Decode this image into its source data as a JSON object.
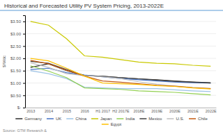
{
  "chart_data": {
    "type": "line",
    "title": "Historical and Forecasted Utility PV System Pricing, 2013-2022E",
    "ylabel": "$/Wdc",
    "source": "Source: GTM Research &",
    "categories": [
      "2013",
      "2014",
      "2015",
      "2016",
      "H1 2017",
      "H2 2017E",
      "2018E",
      "2019E",
      "2020E",
      "2021E",
      "2022E"
    ],
    "series": [
      {
        "name": "Germany",
        "color": "#2d2d2d",
        "values": [
          1.63,
          1.78,
          1.5,
          1.3,
          1.27,
          1.22,
          1.17,
          1.13,
          1.08,
          1.04,
          1.01
        ]
      },
      {
        "name": "UK",
        "color": "#4472c4",
        "values": [
          1.55,
          1.6,
          1.42,
          1.32,
          1.25,
          1.18,
          1.13,
          1.08,
          1.04,
          1.01,
          1.0
        ]
      },
      {
        "name": "China",
        "color": "#9dc3e6",
        "values": [
          1.5,
          1.38,
          1.18,
          0.83,
          0.8,
          0.77,
          0.77,
          0.77,
          0.72,
          0.68,
          0.65
        ]
      },
      {
        "name": "Japan",
        "color": "#c9c900",
        "values": [
          3.5,
          3.35,
          2.8,
          2.1,
          2.05,
          1.95,
          1.85,
          1.8,
          1.78,
          1.72,
          1.68
        ]
      },
      {
        "name": "India",
        "color": "#92d050",
        "values": [
          1.7,
          1.48,
          1.22,
          0.8,
          0.77,
          0.74,
          0.68,
          0.65,
          0.62,
          0.57,
          0.52
        ]
      },
      {
        "name": "Mexico",
        "color": "#404040",
        "values": [
          1.88,
          1.8,
          1.55,
          1.3,
          1.27,
          1.22,
          1.17,
          1.12,
          1.07,
          1.03,
          1.0
        ]
      },
      {
        "name": "U.S.",
        "color": "#bfbfbf",
        "values": [
          1.82,
          1.63,
          1.38,
          1.3,
          1.25,
          1.18,
          1.05,
          0.95,
          0.88,
          0.82,
          0.78
        ]
      },
      {
        "name": "Chile",
        "color": "#c55a11",
        "values": [
          1.92,
          1.78,
          1.52,
          1.28,
          1.08,
          1.03,
          0.97,
          0.91,
          0.87,
          0.81,
          0.77
        ]
      },
      {
        "name": "Egypt",
        "color": "#ffc000",
        "values": [
          2.0,
          1.9,
          1.6,
          1.28,
          1.0,
          0.97,
          0.94,
          0.89,
          0.86,
          0.8,
          0.76
        ]
      }
    ],
    "ylim": [
      0,
      3.75
    ],
    "yticks": [
      {
        "value": 0,
        "label": "$-"
      },
      {
        "value": 0.5,
        "label": "$0.50"
      },
      {
        "value": 1.0,
        "label": "$1.00"
      },
      {
        "value": 1.5,
        "label": "$1.50"
      },
      {
        "value": 2.0,
        "label": "$2.00"
      },
      {
        "value": 2.5,
        "label": "$2.50"
      },
      {
        "value": 3.0,
        "label": "$3.00"
      },
      {
        "value": 3.5,
        "label": "$3.50"
      }
    ],
    "grid": true,
    "legend": "bottom"
  }
}
